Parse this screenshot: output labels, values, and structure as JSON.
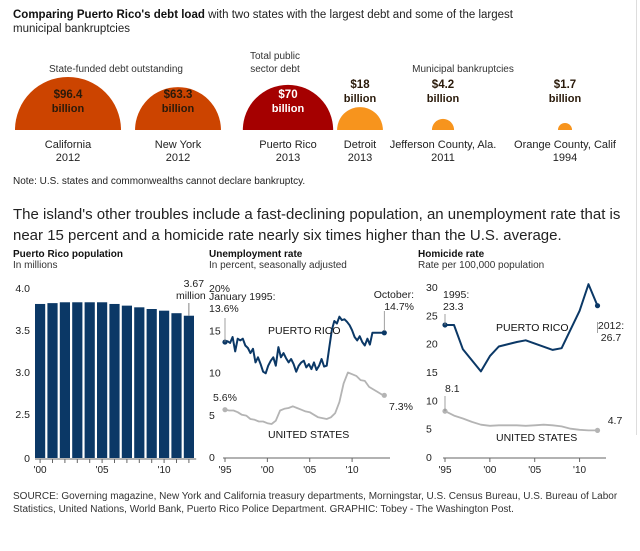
{
  "header": {
    "title_bold": "Comparing Puerto Rico's debt load",
    "title_rest": " with two states with the largest debt and some of the largest municipal bankruptcies"
  },
  "debt": {
    "group_labels": {
      "state": "State-funded debt outstanding",
      "total": "Total public sector debt",
      "municipal": "Municipal bankruptcies"
    },
    "colors": {
      "state": "#cc4400",
      "total": "#a50000",
      "municipal": "#f7941d"
    },
    "items": [
      {
        "amount": "$96.4",
        "unit": "billion",
        "place": "California",
        "year": "2012",
        "value": 96.4,
        "group": "state"
      },
      {
        "amount": "$63.3",
        "unit": "billion",
        "place": "New York",
        "year": "2012",
        "value": 63.3,
        "group": "state"
      },
      {
        "amount": "$70",
        "unit": "billion",
        "place": "Puerto Rico",
        "year": "2013",
        "value": 70,
        "group": "total"
      },
      {
        "amount": "$18",
        "unit": "billion",
        "place": "Detroit",
        "year": "2013",
        "value": 18,
        "group": "municipal"
      },
      {
        "amount": "$4.2",
        "unit": "billion",
        "place": "Jefferson County, Ala.",
        "year": "2011",
        "value": 4.2,
        "group": "municipal"
      },
      {
        "amount": "$1.7",
        "unit": "billion",
        "place": "Orange County, Calif",
        "year": "1994",
        "value": 1.7,
        "group": "municipal"
      }
    ],
    "note": "Note: U.S. states and commonwealths cannot declare bankruptcy."
  },
  "lede": "The island's other troubles include a fast-declining population, an unemployment rate that is near 15 percent and a homicide rate nearly six times higher than the U.S. average.",
  "source": "SOURCE: Governing magazine, New York and California treasury departments, Morningstar, U.S. Census Bureau, U.S. Bureau of Labor Statistics, United Nations, World Bank, Puerto Rico Police Department. GRAPHIC: Tobey - The Washington Post.",
  "chart_data": [
    {
      "type": "bar",
      "title": "Puerto Rico population",
      "subtitle": "In millions",
      "xlabel": "",
      "ylabel": "",
      "categories": [
        "2000",
        "2001",
        "2002",
        "2003",
        "2004",
        "2005",
        "2006",
        "2007",
        "2008",
        "2009",
        "2010",
        "2011",
        "2012"
      ],
      "values": [
        3.81,
        3.82,
        3.83,
        3.83,
        3.83,
        3.83,
        3.81,
        3.79,
        3.77,
        3.75,
        3.73,
        3.7,
        3.67
      ],
      "color": "#0b3866",
      "y_ticks": [
        "0",
        "2.5",
        "3.0",
        "3.5",
        "4.0"
      ],
      "y_tick_values": [
        0,
        2.5,
        3.0,
        3.5,
        4.0
      ],
      "ylim_broken": [
        2.0,
        4.0
      ],
      "x_ticks": [
        "'00",
        "'05",
        "'10"
      ],
      "annotation": {
        "text1": "3.67",
        "text2": "million"
      }
    },
    {
      "type": "line",
      "title": "Unemployment rate",
      "subtitle": "In percent, seasonally adjusted",
      "ylim": [
        0,
        20
      ],
      "y_ticks": [
        "0",
        "5",
        "10",
        "15",
        "20%"
      ],
      "y_tick_values": [
        0,
        5,
        10,
        15,
        20
      ],
      "x_ticks": [
        "'95",
        "'00",
        "'05",
        "'10"
      ],
      "x_tick_values": [
        1995,
        2000,
        2005,
        2010
      ],
      "xlim": [
        1995,
        2014
      ],
      "series": [
        {
          "name": "PUERTO RICO",
          "color": "#0b3866",
          "x": [
            1995,
            1995.3,
            1995.6,
            1995.9,
            1996.2,
            1996.5,
            1996.8,
            1997.1,
            1997.4,
            1997.7,
            1998,
            1998.3,
            1998.6,
            1998.9,
            1999.2,
            1999.5,
            1999.8,
            2000.1,
            2000.4,
            2000.7,
            2001,
            2001.3,
            2001.6,
            2001.9,
            2002.2,
            2002.5,
            2002.8,
            2003.1,
            2003.4,
            2003.7,
            2004,
            2004.3,
            2004.6,
            2004.9,
            2005.2,
            2005.5,
            2005.8,
            2006.1,
            2006.4,
            2006.7,
            2007,
            2007.3,
            2007.6,
            2007.9,
            2008.2,
            2008.5,
            2008.8,
            2009.1,
            2009.4,
            2009.7,
            2010,
            2010.3,
            2010.6,
            2010.9,
            2011.2,
            2011.5,
            2011.8,
            2012.1,
            2012.4,
            2012.7,
            2013,
            2013.3,
            2013.6,
            2013.8
          ],
          "y": [
            13.6,
            13.7,
            13.5,
            14.2,
            12.5,
            14.0,
            13.8,
            14.0,
            13.2,
            12.9,
            12.3,
            12.8,
            11.2,
            11.8,
            11.0,
            10.1,
            9.9,
            10.8,
            11.4,
            11.8,
            10.8,
            13.0,
            11.8,
            12.3,
            11.7,
            11.2,
            11.6,
            11.0,
            10.1,
            10.8,
            11.2,
            11.4,
            10.6,
            11.0,
            10.4,
            11.2,
            10.3,
            10.8,
            11.6,
            10.7,
            10.8,
            12.9,
            15.0,
            16.1,
            15.8,
            16.6,
            16.2,
            16.3,
            16.0,
            15.6,
            15.0,
            14.2,
            13.8,
            14.3,
            13.6,
            13.2,
            14.0,
            13.3,
            14.7,
            14.7,
            14.7,
            14.7,
            14.7,
            14.7
          ],
          "label": "PUERTO RICO",
          "start_annotation": [
            "January 1995:",
            "13.6%"
          ],
          "end_annotation": [
            "October:",
            "14.7%"
          ]
        },
        {
          "name": "UNITED STATES",
          "color": "#b4b4b4",
          "x": [
            1995,
            1995.5,
            1996,
            1996.5,
            1997,
            1997.5,
            1998,
            1998.5,
            1999,
            1999.5,
            2000,
            2000.5,
            2001,
            2001.5,
            2002,
            2002.5,
            2003,
            2003.5,
            2004,
            2004.5,
            2005,
            2005.5,
            2006,
            2006.5,
            2007,
            2007.5,
            2008,
            2008.5,
            2009,
            2009.5,
            2010,
            2010.5,
            2011,
            2011.5,
            2012,
            2012.5,
            2013,
            2013.5,
            2013.8
          ],
          "y": [
            5.6,
            5.5,
            5.5,
            5.3,
            5.0,
            4.9,
            4.5,
            4.4,
            4.2,
            4.2,
            4.0,
            3.9,
            4.3,
            5.5,
            5.7,
            5.8,
            6.0,
            5.8,
            5.6,
            5.4,
            5.3,
            5.0,
            4.7,
            4.6,
            4.5,
            4.7,
            5.2,
            6.5,
            8.7,
            10.0,
            9.8,
            9.6,
            9.1,
            9.0,
            8.3,
            8.0,
            7.7,
            7.4,
            7.3
          ],
          "label": "UNITED STATES",
          "start_annotation": [
            "5.6%"
          ],
          "end_annotation": [
            "7.3%"
          ]
        }
      ]
    },
    {
      "type": "line",
      "title": "Homicide rate",
      "subtitle": "Rate per 100,000 population",
      "ylim": [
        0,
        30
      ],
      "y_ticks": [
        "0",
        "5",
        "10",
        "15",
        "20",
        "25",
        "30"
      ],
      "y_tick_values": [
        0,
        5,
        10,
        15,
        20,
        25,
        30
      ],
      "x_ticks": [
        "'95",
        "'00",
        "'05",
        "'10"
      ],
      "x_tick_values": [
        1995,
        2000,
        2005,
        2010
      ],
      "xlim": [
        1995,
        2012.5
      ],
      "series": [
        {
          "name": "PUERTO RICO",
          "color": "#0b3866",
          "x": [
            1995,
            1996,
            1997,
            1999,
            2000,
            2001,
            2003,
            2004,
            2007,
            2008,
            2010,
            2011,
            2012
          ],
          "y": [
            23.3,
            23.3,
            19.0,
            15.1,
            17.8,
            19.5,
            20.3,
            20.6,
            18.9,
            19.2,
            25.8,
            30.5,
            26.7
          ],
          "label": "PUERTO RICO",
          "start_annotation": [
            "1995:",
            "23.3"
          ],
          "end_annotation": [
            "2012:",
            "26.7"
          ]
        },
        {
          "name": "UNITED STATES",
          "color": "#b4b4b4",
          "x": [
            1995,
            1996,
            1997,
            1998,
            1999,
            2000,
            2001,
            2002,
            2003,
            2004,
            2005,
            2006,
            2007,
            2008,
            2009,
            2010,
            2011,
            2012
          ],
          "y": [
            8.1,
            7.3,
            6.8,
            6.2,
            5.7,
            5.5,
            5.6,
            5.6,
            5.6,
            5.5,
            5.6,
            5.7,
            5.6,
            5.4,
            5.0,
            4.8,
            4.7,
            4.7
          ],
          "label": "UNITED STATES",
          "start_annotation": [
            "8.1"
          ],
          "end_annotation": [
            "4.7"
          ]
        }
      ]
    }
  ]
}
